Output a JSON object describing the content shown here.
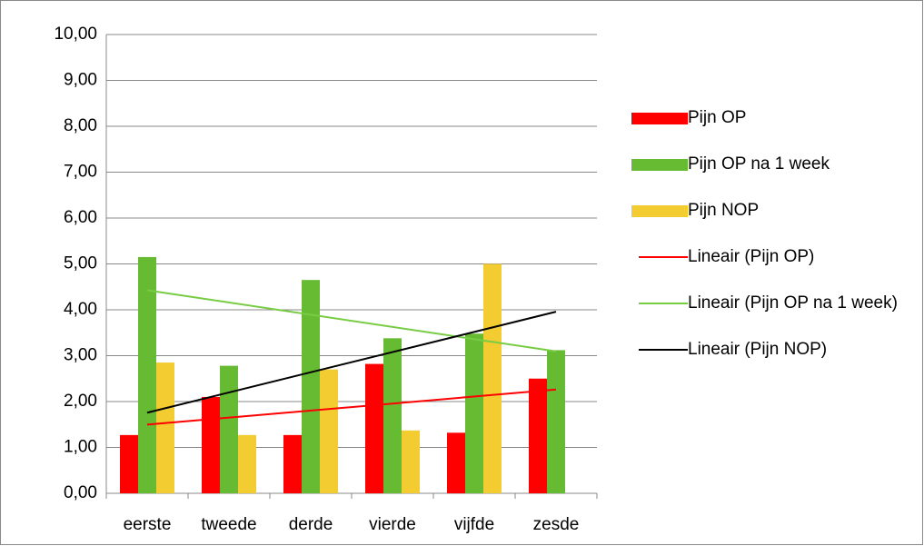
{
  "chart_data": {
    "type": "bar",
    "categories": [
      "eerste",
      "tweede",
      "derde",
      "vierde",
      "vijfde",
      "zesde"
    ],
    "series": [
      {
        "name": "Pijn OP",
        "color": "#ff0000",
        "values": [
          1.27,
          2.1,
          1.27,
          2.82,
          1.32,
          2.5
        ],
        "trendline": {
          "type": "linear",
          "name": "Lineair (Pijn OP)",
          "color": "#ff0000"
        }
      },
      {
        "name": "Pijn OP na 1 week",
        "color": "#66bb33",
        "values": [
          5.15,
          2.78,
          4.65,
          3.38,
          3.48,
          3.12
        ],
        "trendline": {
          "type": "linear",
          "name": "Lineair (Pijn OP na 1 week)",
          "color": "#77cc44"
        }
      },
      {
        "name": "Pijn NOP",
        "color": "#f2cc30",
        "values": [
          2.85,
          1.27,
          2.7,
          1.37,
          5.0,
          null
        ],
        "trendline": {
          "type": "linear",
          "name": "Lineair (Pijn NOP)",
          "color": "#000000"
        }
      }
    ],
    "ylim": [
      0,
      10
    ],
    "yticks": [
      {
        "value": 0,
        "label": "0,00"
      },
      {
        "value": 1,
        "label": "1,00"
      },
      {
        "value": 2,
        "label": "2,00"
      },
      {
        "value": 3,
        "label": "3,00"
      },
      {
        "value": 4,
        "label": "4,00"
      },
      {
        "value": 5,
        "label": "5,00"
      },
      {
        "value": 6,
        "label": "6,00"
      },
      {
        "value": 7,
        "label": "7,00"
      },
      {
        "value": 8,
        "label": "8,00"
      },
      {
        "value": 9,
        "label": "9,00"
      },
      {
        "value": 10,
        "label": "10,00"
      }
    ],
    "grid": true,
    "legend": "right"
  }
}
